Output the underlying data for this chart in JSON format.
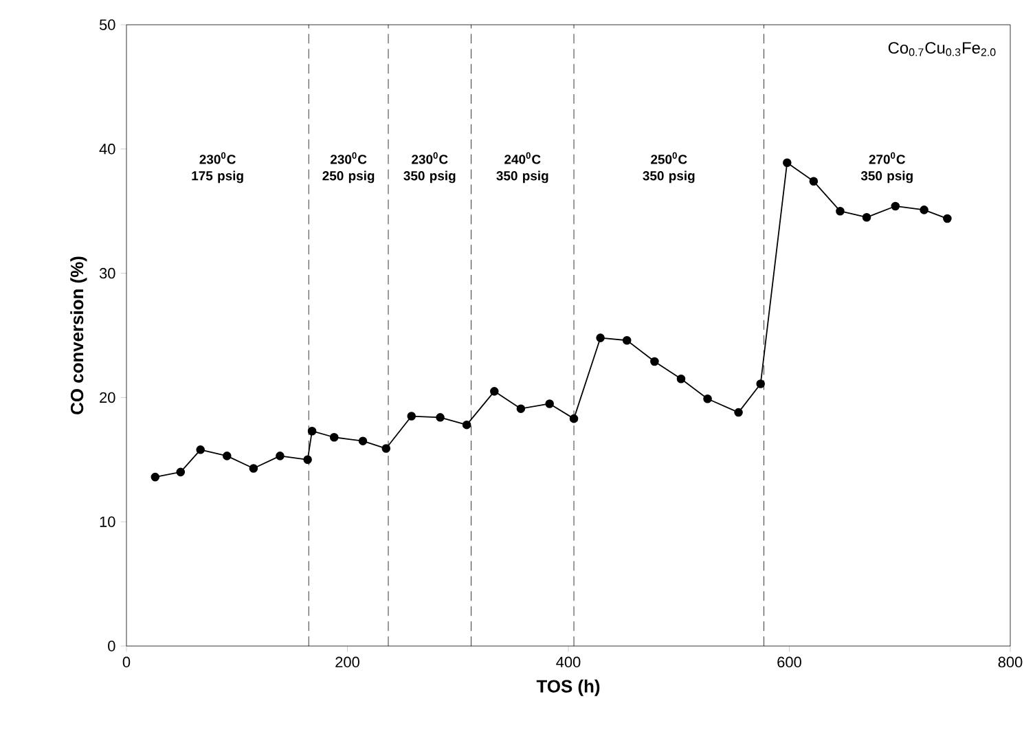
{
  "chart_data": {
    "type": "line",
    "xlabel": "TOS (h)",
    "ylabel": "CO conversion (%)",
    "x": [
      26,
      49,
      67,
      91,
      115,
      139,
      164,
      168,
      188,
      214,
      235,
      258,
      284,
      308,
      333,
      357,
      383,
      405,
      429,
      453,
      478,
      502,
      526,
      554,
      574,
      598,
      622,
      646,
      670,
      696,
      722,
      743
    ],
    "values": [
      13.6,
      14.0,
      15.8,
      15.3,
      14.3,
      15.3,
      15.0,
      17.3,
      16.8,
      16.5,
      15.9,
      18.5,
      18.4,
      17.8,
      20.5,
      19.1,
      19.5,
      18.3,
      24.8,
      24.6,
      22.9,
      21.5,
      19.9,
      18.8,
      21.1,
      38.9,
      37.4,
      35.0,
      34.5,
      35.4,
      35.1,
      34.4
    ],
    "color": "#000000",
    "marker": "circle",
    "line_style": "solid",
    "xlim": [
      0,
      800
    ],
    "xticks": [
      0,
      200,
      400,
      600,
      800
    ],
    "ylim": [
      0,
      50
    ],
    "yticks": [
      0,
      10,
      20,
      30,
      40,
      50
    ],
    "grid": false,
    "ref_lines": [
      {
        "axis": "x",
        "value": 165,
        "color": "#000000",
        "line_style": "dashed"
      },
      {
        "axis": "x",
        "value": 237,
        "color": "#000000",
        "line_style": "dashed"
      },
      {
        "axis": "x",
        "value": 312,
        "color": "#000000",
        "line_style": "dashed"
      },
      {
        "axis": "x",
        "value": 405,
        "color": "#000000",
        "line_style": "dashed"
      },
      {
        "axis": "x",
        "value": 577,
        "color": "#000000",
        "line_style": "dashed"
      }
    ],
    "annotations": [
      "230$^{0}$C 175 psig",
      "230$^{0}$C 250 psig",
      "230$^{0}$C 350 psig",
      "240$^{0}$C 350 psig",
      "250$^{0}$C 350 psig",
      "270$^{0}$C 350 psig",
      "Co$_{0.7}$Cu$_{0.3}$Fe$_{2.0}$"
    ]
  }
}
